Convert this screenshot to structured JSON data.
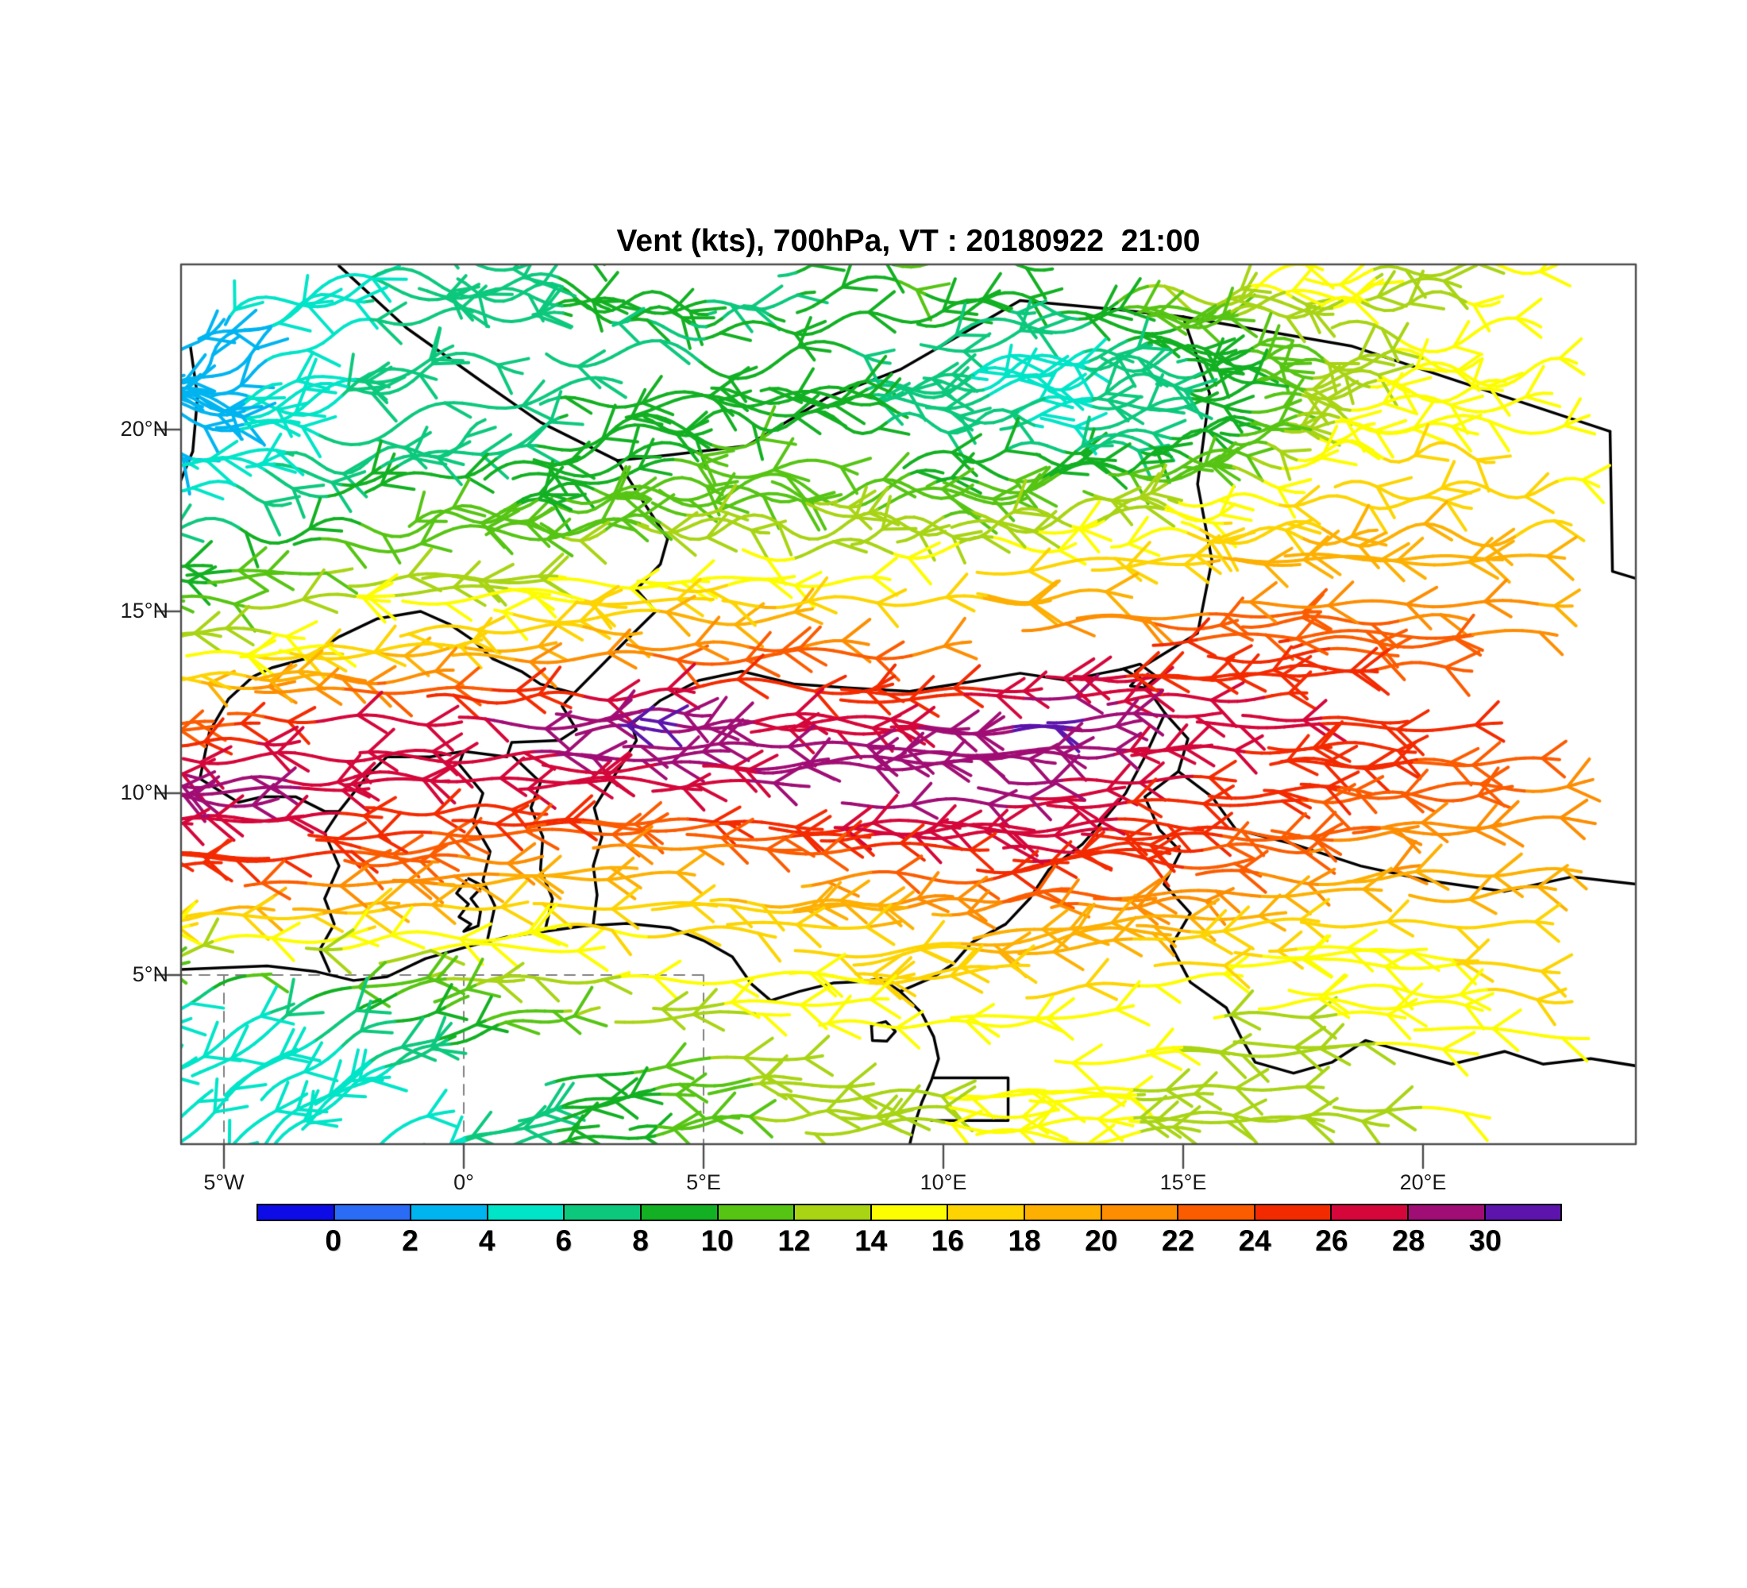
{
  "title": "Vent (kts), 700hPa, VT : 20180922  21:00",
  "style": {
    "background": "#ffffff",
    "frame_color": "#4d4d4d",
    "border_color": "#000000",
    "dash_color": "#808080"
  },
  "chart_data": {
    "type": "wind_barb_map",
    "title": "Vent (kts), 700hPa, VT : 20180922  21:00",
    "variable": "Vent",
    "units": "kts",
    "level": "700hPa",
    "valid_time_label": "VT : 20180922  21:00",
    "lon_range": [
      -5.9,
      24.45
    ],
    "lat_range": [
      0.35,
      24.55
    ],
    "x_axis": {
      "tick_labels": [
        "5°W",
        "0°",
        "5°E",
        "10°E",
        "15°E",
        "20°E"
      ],
      "tick_lons": [
        -5,
        0,
        5,
        10,
        15,
        20
      ]
    },
    "y_axis": {
      "tick_labels": [
        "20°N",
        "15°N",
        "10°N",
        "5°N"
      ],
      "tick_lats": [
        20,
        15,
        10,
        5
      ]
    },
    "guide_lines": {
      "dashed_lat": 5,
      "dashed_lons": [
        -5,
        0,
        5
      ]
    },
    "colorbar": {
      "levels": [
        0,
        2,
        4,
        6,
        8,
        10,
        12,
        14,
        16,
        18,
        20,
        22,
        24,
        26,
        28,
        30
      ],
      "tick_labels": [
        "0",
        "2",
        "4",
        "6",
        "8",
        "10",
        "12",
        "14",
        "16",
        "18",
        "20",
        "22",
        "24",
        "26",
        "28",
        "30"
      ],
      "colors": [
        "#0d0ce6",
        "#2a6cf5",
        "#00b4f0",
        "#00e4c8",
        "#0cc87d",
        "#12b022",
        "#56c413",
        "#a8d414",
        "#fdfd02",
        "#fdd402",
        "#fdb002",
        "#fd8d01",
        "#fb5c00",
        "#f32a00",
        "#d4063a",
        "#a00d74",
        "#5c14ac"
      ]
    },
    "wind_grid": {
      "lons": [
        -6,
        -4,
        -2,
        0,
        2,
        4,
        6,
        8,
        10,
        12,
        14,
        16,
        18,
        20,
        22,
        24
      ],
      "lats": [
        24,
        22,
        20,
        18,
        16,
        14,
        12,
        10,
        8,
        6,
        4,
        2
      ],
      "speed_kts": [
        [
          5,
          4,
          6,
          7,
          8,
          9,
          7,
          9,
          11,
          9,
          12,
          14,
          15,
          13,
          15,
          16
        ],
        [
          3,
          4,
          6,
          7,
          8,
          7,
          9,
          8,
          6,
          5,
          7,
          9,
          12,
          15,
          14,
          15
        ],
        [
          2,
          5,
          7,
          6,
          8,
          9,
          10,
          9,
          7,
          6,
          6,
          9,
          14,
          16,
          15,
          14
        ],
        [
          6,
          7,
          9,
          10,
          10,
          11,
          12,
          12,
          11,
          12,
          13,
          15,
          17,
          18,
          17,
          16
        ],
        [
          9,
          11,
          13,
          12,
          14,
          15,
          15,
          14,
          16,
          17,
          18,
          19,
          20,
          20,
          19,
          18
        ],
        [
          13,
          15,
          17,
          18,
          19,
          21,
          22,
          22,
          21,
          23,
          24,
          25,
          24,
          23,
          22,
          21
        ],
        [
          22,
          25,
          27,
          28,
          29,
          31,
          28,
          27,
          28,
          31,
          29,
          27,
          26,
          25,
          24,
          23
        ],
        [
          30,
          29,
          26,
          27,
          27,
          26,
          28,
          31,
          30,
          28,
          26,
          25,
          24,
          23,
          22,
          21
        ],
        [
          24,
          25,
          23,
          21,
          20,
          19,
          20,
          22,
          24,
          26,
          25,
          23,
          21,
          20,
          19,
          18
        ],
        [
          14,
          15,
          15,
          15,
          15,
          16,
          16,
          17,
          18,
          19,
          18,
          17,
          16,
          16,
          17,
          18
        ],
        [
          5,
          6,
          8,
          10,
          12,
          13,
          14,
          15,
          16,
          16,
          15,
          14,
          14,
          15,
          16,
          16
        ],
        [
          4,
          4,
          5,
          6,
          8,
          10,
          12,
          13,
          14,
          15,
          14,
          13,
          13,
          14,
          15,
          15
        ]
      ],
      "flow_dir_deg": [
        [
          205,
          195,
          185,
          178,
          172,
          180,
          188,
          184,
          180,
          176,
          184,
          192,
          188,
          184,
          180,
          176
        ],
        [
          235,
          215,
          198,
          186,
          176,
          172,
          180,
          188,
          198,
          192,
          184,
          180,
          176,
          180,
          184,
          180
        ],
        [
          150,
          168,
          188,
          202,
          194,
          186,
          180,
          176,
          180,
          184,
          190,
          186,
          180,
          178,
          182,
          180
        ],
        [
          172,
          178,
          184,
          190,
          186,
          180,
          178,
          182,
          186,
          188,
          184,
          180,
          178,
          180,
          182,
          184
        ],
        [
          178,
          182,
          186,
          180,
          176,
          180,
          184,
          180,
          178,
          182,
          184,
          180,
          178,
          180,
          182,
          180
        ],
        [
          180,
          178,
          182,
          184,
          180,
          178,
          180,
          182,
          184,
          180,
          178,
          182,
          184,
          180,
          178,
          180
        ],
        [
          182,
          180,
          178,
          180,
          182,
          184,
          180,
          178,
          180,
          182,
          184,
          180,
          178,
          180,
          182,
          184
        ],
        [
          178,
          182,
          184,
          180,
          178,
          180,
          182,
          184,
          180,
          178,
          182,
          180,
          178,
          182,
          184,
          180
        ],
        [
          184,
          180,
          178,
          182,
          184,
          180,
          178,
          180,
          182,
          184,
          180,
          178,
          182,
          184,
          180,
          178
        ],
        [
          188,
          186,
          184,
          182,
          180,
          178,
          180,
          182,
          186,
          188,
          186,
          182,
          180,
          178,
          180,
          182
        ],
        [
          205,
          210,
          202,
          194,
          188,
          184,
          182,
          180,
          180,
          184,
          186,
          182,
          180,
          178,
          176,
          178
        ],
        [
          215,
          222,
          212,
          202,
          194,
          188,
          184,
          182,
          180,
          180,
          182,
          180,
          178,
          176,
          178,
          180
        ]
      ]
    }
  },
  "map_outlines": {
    "borders": [
      [
        [
          -5.9,
          5.15
        ],
        [
          -5.0,
          5.2
        ],
        [
          -4.1,
          5.25
        ],
        [
          -3.1,
          5.1
        ],
        [
          -2.3,
          4.85
        ],
        [
          -1.6,
          4.95
        ],
        [
          -0.8,
          5.45
        ],
        [
          0.0,
          5.75
        ],
        [
          0.9,
          6.05
        ],
        [
          1.7,
          6.2
        ],
        [
          2.5,
          6.35
        ],
        [
          3.4,
          6.42
        ],
        [
          4.3,
          6.3
        ],
        [
          5.0,
          5.95
        ],
        [
          5.6,
          5.5
        ],
        [
          6.0,
          4.75
        ],
        [
          6.4,
          4.3
        ],
        [
          7.0,
          4.55
        ],
        [
          7.7,
          4.78
        ],
        [
          8.3,
          4.82
        ],
        [
          8.7,
          4.9
        ],
        [
          9.1,
          4.55
        ],
        [
          9.55,
          3.95
        ],
        [
          9.8,
          3.3
        ],
        [
          9.9,
          2.7
        ],
        [
          9.75,
          2.1
        ],
        [
          9.55,
          1.5
        ],
        [
          9.4,
          0.9
        ],
        [
          9.3,
          0.35
        ]
      ],
      [
        [
          8.5,
          3.62
        ],
        [
          8.8,
          3.72
        ],
        [
          9.0,
          3.45
        ],
        [
          8.82,
          3.18
        ],
        [
          8.52,
          3.2
        ],
        [
          8.5,
          3.62
        ]
      ],
      [
        [
          9.8,
          2.17
        ],
        [
          11.35,
          2.17
        ],
        [
          11.35,
          1.0
        ],
        [
          9.75,
          1.0
        ]
      ],
      [
        [
          0.05,
          7.6
        ],
        [
          -0.15,
          7.25
        ],
        [
          0.1,
          6.95
        ],
        [
          -0.1,
          6.6
        ],
        [
          0.15,
          6.4
        ],
        [
          0.0,
          6.2
        ],
        [
          0.3,
          6.35
        ],
        [
          0.35,
          6.75
        ],
        [
          0.15,
          7.1
        ],
        [
          0.4,
          7.45
        ],
        [
          0.1,
          7.65
        ]
      ],
      [
        [
          -2.8,
          5.1
        ],
        [
          -3.0,
          5.7
        ],
        [
          -2.7,
          6.4
        ],
        [
          -2.9,
          7.1
        ],
        [
          -2.6,
          8.0
        ],
        [
          -2.9,
          8.9
        ],
        [
          -2.6,
          9.5
        ]
      ],
      [
        [
          0.5,
          6.0
        ],
        [
          0.65,
          6.9
        ],
        [
          0.4,
          7.6
        ],
        [
          0.55,
          8.4
        ],
        [
          0.2,
          9.2
        ],
        [
          0.4,
          10.0
        ],
        [
          -0.1,
          10.8
        ],
        [
          0.0,
          11.15
        ]
      ],
      [
        [
          1.7,
          6.25
        ],
        [
          1.85,
          7.1
        ],
        [
          1.6,
          7.9
        ],
        [
          1.65,
          8.8
        ],
        [
          1.4,
          9.6
        ],
        [
          1.6,
          10.3
        ],
        [
          1.0,
          11.05
        ]
      ],
      [
        [
          2.7,
          6.4
        ],
        [
          2.78,
          7.2
        ],
        [
          2.7,
          8.0
        ],
        [
          2.88,
          8.8
        ],
        [
          2.72,
          9.6
        ],
        [
          3.05,
          10.3
        ],
        [
          3.35,
          10.9
        ],
        [
          3.6,
          11.45
        ],
        [
          3.5,
          11.9
        ]
      ],
      [
        [
          -5.5,
          10.4
        ],
        [
          -4.7,
          9.75
        ],
        [
          -4.2,
          9.9
        ],
        [
          -3.5,
          9.9
        ],
        [
          -2.9,
          9.5
        ],
        [
          -2.6,
          9.5
        ],
        [
          -2.0,
          10.5
        ],
        [
          -1.6,
          11.0
        ],
        [
          -0.7,
          11.0
        ],
        [
          0.0,
          11.15
        ],
        [
          0.9,
          11.0
        ],
        [
          1.0,
          11.4
        ],
        [
          2.0,
          11.45
        ],
        [
          2.35,
          11.75
        ],
        [
          2.05,
          12.4
        ],
        [
          2.3,
          12.75
        ],
        [
          1.6,
          13.0
        ],
        [
          1.2,
          13.35
        ],
        [
          0.6,
          13.7
        ],
        [
          0.2,
          14.2
        ],
        [
          -0.3,
          14.65
        ],
        [
          -0.9,
          15.0
        ],
        [
          -1.8,
          14.8
        ],
        [
          -2.6,
          14.3
        ],
        [
          -3.3,
          13.7
        ],
        [
          -4.0,
          13.45
        ],
        [
          -4.4,
          13.2
        ],
        [
          -4.9,
          12.6
        ],
        [
          -5.3,
          11.7
        ],
        [
          -5.5,
          10.4
        ]
      ],
      [
        [
          -2.6,
          24.5
        ],
        [
          -1.2,
          22.8
        ],
        [
          0.4,
          21.3
        ],
        [
          1.6,
          20.2
        ],
        [
          3.2,
          19.15
        ]
      ],
      [
        [
          3.2,
          19.15
        ],
        [
          4.3,
          19.3
        ],
        [
          5.9,
          19.55
        ],
        [
          7.6,
          20.9
        ],
        [
          9.1,
          21.65
        ],
        [
          11.6,
          23.55
        ],
        [
          13.6,
          23.3
        ],
        [
          15.0,
          23.1
        ]
      ],
      [
        [
          15.0,
          23.1
        ],
        [
          15.55,
          21.0
        ],
        [
          15.3,
          18.5
        ],
        [
          15.6,
          16.4
        ],
        [
          15.3,
          14.4
        ],
        [
          14.0,
          13.35
        ]
      ],
      [
        [
          3.2,
          19.15
        ],
        [
          3.65,
          18.2
        ],
        [
          4.25,
          17.0
        ],
        [
          4.1,
          16.3
        ],
        [
          3.6,
          15.6
        ],
        [
          4.0,
          15.0
        ],
        [
          3.5,
          14.35
        ],
        [
          2.3,
          12.75
        ]
      ],
      [
        [
          3.5,
          11.9
        ],
        [
          4.1,
          12.55
        ],
        [
          4.9,
          13.1
        ],
        [
          5.8,
          13.35
        ],
        [
          6.9,
          13.0
        ],
        [
          8.0,
          12.9
        ],
        [
          9.3,
          12.8
        ],
        [
          10.5,
          13.05
        ],
        [
          11.6,
          13.3
        ],
        [
          12.6,
          13.1
        ],
        [
          13.3,
          13.3
        ],
        [
          13.7,
          13.4
        ]
      ],
      [
        [
          13.7,
          13.4
        ],
        [
          14.1,
          13.55
        ],
        [
          14.45,
          13.2
        ],
        [
          14.2,
          12.9
        ],
        [
          13.9,
          12.95
        ],
        [
          14.05,
          13.18
        ],
        [
          13.75,
          13.42
        ]
      ],
      [
        [
          14.0,
          13.35
        ],
        [
          14.62,
          12.2
        ],
        [
          14.2,
          11.0
        ],
        [
          13.8,
          10.0
        ],
        [
          13.3,
          9.2
        ],
        [
          12.9,
          8.6
        ],
        [
          12.2,
          7.9
        ],
        [
          11.8,
          7.1
        ],
        [
          11.3,
          6.4
        ],
        [
          10.6,
          5.9
        ],
        [
          10.2,
          5.3
        ],
        [
          9.8,
          4.95
        ],
        [
          9.1,
          4.55
        ]
      ],
      [
        [
          15.0,
          23.1
        ],
        [
          18.5,
          22.3
        ],
        [
          23.9,
          19.95
        ]
      ],
      [
        [
          23.9,
          19.95
        ],
        [
          23.95,
          16.1
        ],
        [
          24.45,
          15.9
        ]
      ],
      [
        [
          14.62,
          12.2
        ],
        [
          15.1,
          11.5
        ],
        [
          14.9,
          10.6
        ],
        [
          15.6,
          9.9
        ],
        [
          16.1,
          9.0
        ],
        [
          17.3,
          8.6
        ],
        [
          18.7,
          8.0
        ],
        [
          20.1,
          7.6
        ],
        [
          21.7,
          7.3
        ],
        [
          23.1,
          7.7
        ],
        [
          24.45,
          7.5
        ]
      ],
      [
        [
          14.9,
          10.6
        ],
        [
          14.2,
          9.9
        ],
        [
          14.5,
          9.0
        ],
        [
          14.95,
          8.4
        ],
        [
          14.6,
          7.5
        ],
        [
          15.15,
          6.7
        ],
        [
          14.75,
          5.8
        ],
        [
          15.15,
          4.8
        ],
        [
          15.9,
          4.1
        ],
        [
          16.2,
          3.3
        ],
        [
          16.5,
          2.6
        ],
        [
          17.3,
          2.3
        ],
        [
          18.1,
          2.6
        ],
        [
          18.8,
          3.2
        ],
        [
          19.6,
          2.9
        ],
        [
          20.6,
          2.55
        ],
        [
          21.7,
          2.9
        ],
        [
          22.5,
          2.55
        ],
        [
          23.5,
          2.7
        ],
        [
          24.45,
          2.5
        ]
      ],
      [
        [
          -5.7,
          22.3
        ],
        [
          -5.55,
          20.9
        ],
        [
          -5.65,
          19.4
        ],
        [
          -5.9,
          18.6
        ]
      ]
    ]
  }
}
